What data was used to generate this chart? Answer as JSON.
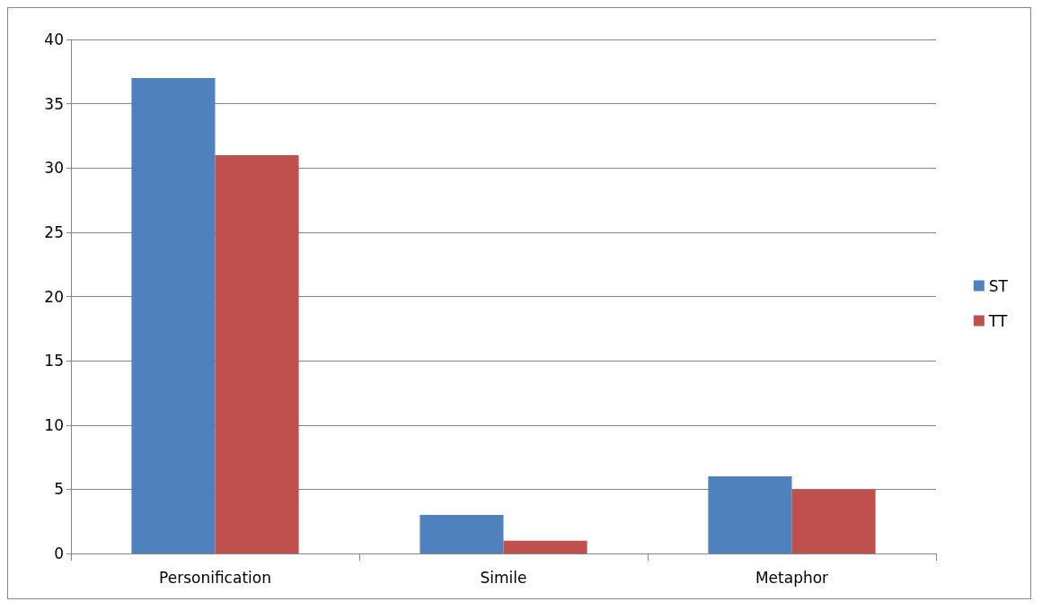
{
  "chart_data": {
    "type": "bar",
    "categories": [
      "Personification",
      "Simile",
      "Metaphor"
    ],
    "series": [
      {
        "name": "ST",
        "color": "#4f81bd",
        "values": [
          37,
          3,
          6
        ]
      },
      {
        "name": "TT",
        "color": "#c0504d",
        "values": [
          31,
          1,
          5
        ]
      }
    ],
    "ylim": [
      0,
      40
    ],
    "yticks": [
      0,
      5,
      10,
      15,
      20,
      25,
      30,
      35,
      40
    ],
    "grid": "y",
    "legend": "right"
  }
}
